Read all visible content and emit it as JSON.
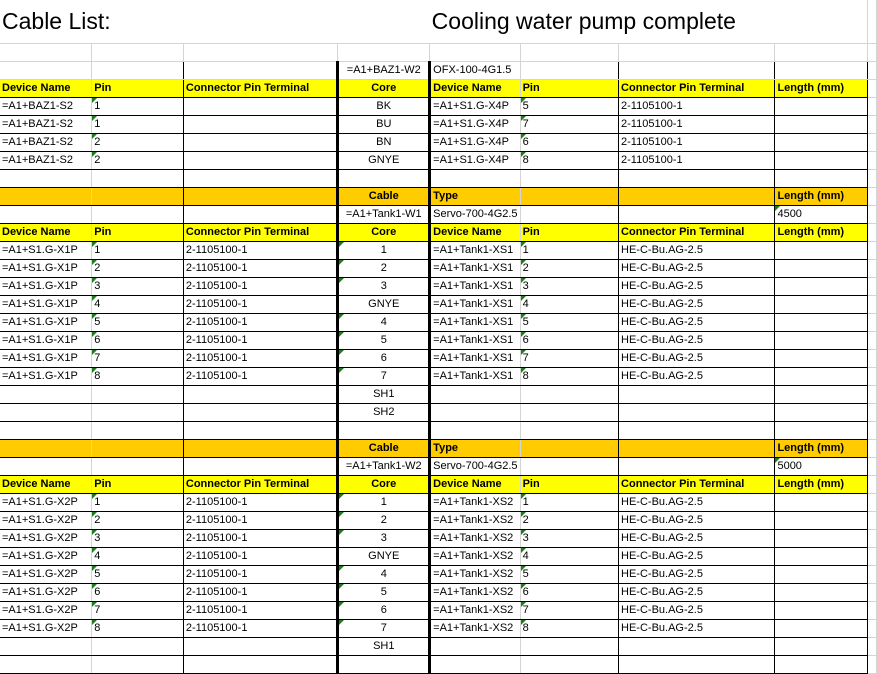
{
  "title": {
    "left": "Cable List:",
    "center": "Cooling water pump complete"
  },
  "colors": {
    "header_yellow": "#ffff00",
    "cable_orange": "#ffcc00",
    "gridline": "#d4d4d4",
    "comment_marker": "#1e7c1e"
  },
  "section1": {
    "cable_id": "=A1+BAZ1-W2",
    "cable_type": "OFX-100-4G1.5",
    "headers": {
      "device_name": "Device Name",
      "pin": "Pin",
      "connector": "Connector Pin Terminal",
      "core": "Core",
      "device_name2": "Device Name",
      "pin2": "Pin",
      "connector2": "Connector Pin Terminal",
      "length": "Length (mm)"
    },
    "rows": [
      {
        "device": "=A1+BAZ1-S2",
        "pin": "1",
        "connector": "",
        "core": "BK",
        "device2": "=A1+S1.G-X4P",
        "pin2": "5",
        "connector2": "2-1105100-1",
        "length": ""
      },
      {
        "device": "=A1+BAZ1-S2",
        "pin": "1",
        "connector": "",
        "core": "BU",
        "device2": "=A1+S1.G-X4P",
        "pin2": "7",
        "connector2": "2-1105100-1",
        "length": ""
      },
      {
        "device": "=A1+BAZ1-S2",
        "pin": "2",
        "connector": "",
        "core": "BN",
        "device2": "=A1+S1.G-X4P",
        "pin2": "6",
        "connector2": "2-1105100-1",
        "length": ""
      },
      {
        "device": "=A1+BAZ1-S2",
        "pin": "2",
        "connector": "",
        "core": "GNYE",
        "device2": "=A1+S1.G-X4P",
        "pin2": "8",
        "connector2": "2-1105100-1",
        "length": ""
      }
    ]
  },
  "section2": {
    "cable_label": "Cable",
    "type_label": "Type",
    "length_label": "Length (mm)",
    "cable_id": "=A1+Tank1-W1",
    "cable_type": "Servo-700-4G2.5",
    "cable_length": "4500",
    "headers": {
      "device_name": "Device Name",
      "pin": "Pin",
      "connector": "Connector Pin Terminal",
      "core": "Core",
      "device_name2": "Device Name",
      "pin2": "Pin",
      "connector2": "Connector Pin Terminal",
      "length": "Length (mm)"
    },
    "rows": [
      {
        "device": "=A1+S1.G-X1P",
        "pin": "1",
        "connector": "2-1105100-1",
        "core": "1",
        "device2": "=A1+Tank1-XS1",
        "pin2": "1",
        "connector2": "HE-C-Bu.AG-2.5"
      },
      {
        "device": "=A1+S1.G-X1P",
        "pin": "2",
        "connector": "2-1105100-1",
        "core": "2",
        "device2": "=A1+Tank1-XS1",
        "pin2": "2",
        "connector2": "HE-C-Bu.AG-2.5"
      },
      {
        "device": "=A1+S1.G-X1P",
        "pin": "3",
        "connector": "2-1105100-1",
        "core": "3",
        "device2": "=A1+Tank1-XS1",
        "pin2": "3",
        "connector2": "HE-C-Bu.AG-2.5"
      },
      {
        "device": "=A1+S1.G-X1P",
        "pin": "4",
        "connector": "2-1105100-1",
        "core": "GNYE",
        "device2": "=A1+Tank1-XS1",
        "pin2": "4",
        "connector2": "HE-C-Bu.AG-2.5"
      },
      {
        "device": "=A1+S1.G-X1P",
        "pin": "5",
        "connector": "2-1105100-1",
        "core": "4",
        "device2": "=A1+Tank1-XS1",
        "pin2": "5",
        "connector2": "HE-C-Bu.AG-2.5"
      },
      {
        "device": "=A1+S1.G-X1P",
        "pin": "6",
        "connector": "2-1105100-1",
        "core": "5",
        "device2": "=A1+Tank1-XS1",
        "pin2": "6",
        "connector2": "HE-C-Bu.AG-2.5"
      },
      {
        "device": "=A1+S1.G-X1P",
        "pin": "7",
        "connector": "2-1105100-1",
        "core": "6",
        "device2": "=A1+Tank1-XS1",
        "pin2": "7",
        "connector2": "HE-C-Bu.AG-2.5"
      },
      {
        "device": "=A1+S1.G-X1P",
        "pin": "8",
        "connector": "2-1105100-1",
        "core": "7",
        "device2": "=A1+Tank1-XS1",
        "pin2": "8",
        "connector2": "HE-C-Bu.AG-2.5"
      },
      {
        "device": "",
        "pin": "",
        "connector": "",
        "core": "SH1",
        "device2": "",
        "pin2": "",
        "connector2": ""
      },
      {
        "device": "",
        "pin": "",
        "connector": "",
        "core": "SH2",
        "device2": "",
        "pin2": "",
        "connector2": ""
      }
    ]
  },
  "section3": {
    "cable_label": "Cable",
    "type_label": "Type",
    "length_label": "Length (mm)",
    "cable_id": "=A1+Tank1-W2",
    "cable_type": "Servo-700-4G2.5",
    "cable_length": "5000",
    "headers": {
      "device_name": "Device Name",
      "pin": "Pin",
      "connector": "Connector Pin Terminal",
      "core": "Core",
      "device_name2": "Device Name",
      "pin2": "Pin",
      "connector2": "Connector Pin Terminal",
      "length": "Length (mm)"
    },
    "rows": [
      {
        "device": "=A1+S1.G-X2P",
        "pin": "1",
        "connector": "2-1105100-1",
        "core": "1",
        "device2": "=A1+Tank1-XS2",
        "pin2": "1",
        "connector2": "HE-C-Bu.AG-2.5"
      },
      {
        "device": "=A1+S1.G-X2P",
        "pin": "2",
        "connector": "2-1105100-1",
        "core": "2",
        "device2": "=A1+Tank1-XS2",
        "pin2": "2",
        "connector2": "HE-C-Bu.AG-2.5"
      },
      {
        "device": "=A1+S1.G-X2P",
        "pin": "3",
        "connector": "2-1105100-1",
        "core": "3",
        "device2": "=A1+Tank1-XS2",
        "pin2": "3",
        "connector2": "HE-C-Bu.AG-2.5"
      },
      {
        "device": "=A1+S1.G-X2P",
        "pin": "4",
        "connector": "2-1105100-1",
        "core": "GNYE",
        "device2": "=A1+Tank1-XS2",
        "pin2": "4",
        "connector2": "HE-C-Bu.AG-2.5"
      },
      {
        "device": "=A1+S1.G-X2P",
        "pin": "5",
        "connector": "2-1105100-1",
        "core": "4",
        "device2": "=A1+Tank1-XS2",
        "pin2": "5",
        "connector2": "HE-C-Bu.AG-2.5"
      },
      {
        "device": "=A1+S1.G-X2P",
        "pin": "6",
        "connector": "2-1105100-1",
        "core": "5",
        "device2": "=A1+Tank1-XS2",
        "pin2": "6",
        "connector2": "HE-C-Bu.AG-2.5"
      },
      {
        "device": "=A1+S1.G-X2P",
        "pin": "7",
        "connector": "2-1105100-1",
        "core": "6",
        "device2": "=A1+Tank1-XS2",
        "pin2": "7",
        "connector2": "HE-C-Bu.AG-2.5"
      },
      {
        "device": "=A1+S1.G-X2P",
        "pin": "8",
        "connector": "2-1105100-1",
        "core": "7",
        "device2": "=A1+Tank1-XS2",
        "pin2": "8",
        "connector2": "HE-C-Bu.AG-2.5"
      },
      {
        "device": "",
        "pin": "",
        "connector": "",
        "core": "SH1",
        "device2": "",
        "pin2": "",
        "connector2": ""
      }
    ]
  }
}
